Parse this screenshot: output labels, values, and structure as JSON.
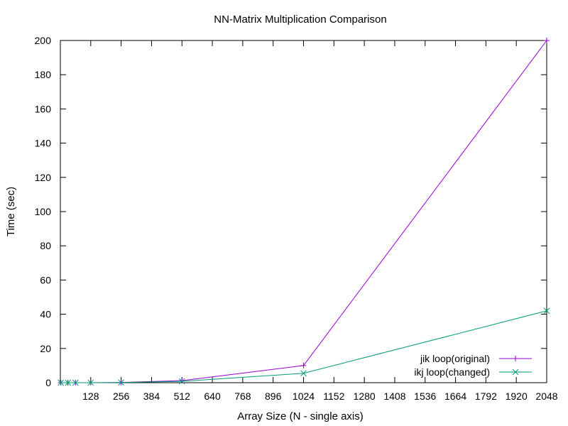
{
  "chart_data": {
    "type": "line",
    "title": "NN-Matrix Multiplication Comparison",
    "xlabel": "Array Size (N - single axis)",
    "ylabel": "Time (sec)",
    "xlim": [
      0,
      2048
    ],
    "ylim": [
      0,
      200
    ],
    "xticks": [
      128,
      256,
      384,
      512,
      640,
      768,
      896,
      1024,
      1152,
      1280,
      1408,
      1536,
      1664,
      1792,
      1920,
      2048
    ],
    "yticks": [
      0,
      20,
      40,
      60,
      80,
      100,
      120,
      140,
      160,
      180,
      200
    ],
    "grid": false,
    "legend_position": "bottom-right",
    "series": [
      {
        "name": "jik loop(original)",
        "color": "#9400d3",
        "marker": "plus",
        "x": [
          2,
          32,
          64,
          128,
          256,
          512,
          1024,
          2048
        ],
        "y": [
          0,
          0,
          0,
          0.02,
          0.15,
          1.2,
          10,
          200
        ]
      },
      {
        "name": "ikj loop(changed)",
        "color": "#009e73",
        "marker": "cross",
        "x": [
          2,
          32,
          64,
          128,
          256,
          512,
          1024,
          2048
        ],
        "y": [
          0,
          0,
          0,
          0.02,
          0.12,
          0.8,
          5.5,
          42
        ]
      }
    ]
  }
}
